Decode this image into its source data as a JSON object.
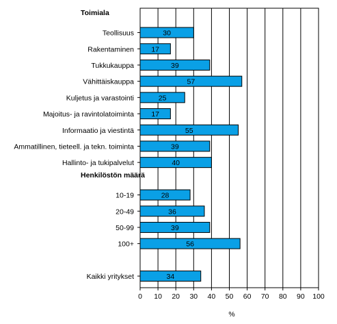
{
  "chart_data": {
    "type": "bar",
    "orientation": "horizontal",
    "xlabel": "%",
    "xlim": [
      0,
      100
    ],
    "x_ticks": [
      "0",
      "10",
      "20",
      "30",
      "40",
      "50",
      "60",
      "70",
      "80",
      "90",
      "100"
    ],
    "bar_color": "#0aa0e6",
    "groups": [
      {
        "label": "Toimiala",
        "categories": [
          "Teollisuus",
          "Rakentaminen",
          "Tukkukauppa",
          "Vähittäiskauppa",
          "Kuljetus ja varastointi",
          "Majoitus- ja ravintolatoiminta",
          "Informaatio ja viestintä",
          "Ammatillinen, tieteell. ja tekn. toiminta",
          "Hallinto- ja tukipalvelut"
        ],
        "values": [
          30,
          17,
          39,
          57,
          25,
          17,
          55,
          39,
          40
        ]
      },
      {
        "label": "Henkilöstön määrä",
        "categories": [
          "10-19",
          "20-49",
          "50-99",
          "100+"
        ],
        "values": [
          28,
          36,
          39,
          56
        ]
      },
      {
        "label": "",
        "categories": [
          "Kaikki yritykset"
        ],
        "values": [
          34
        ]
      }
    ]
  }
}
